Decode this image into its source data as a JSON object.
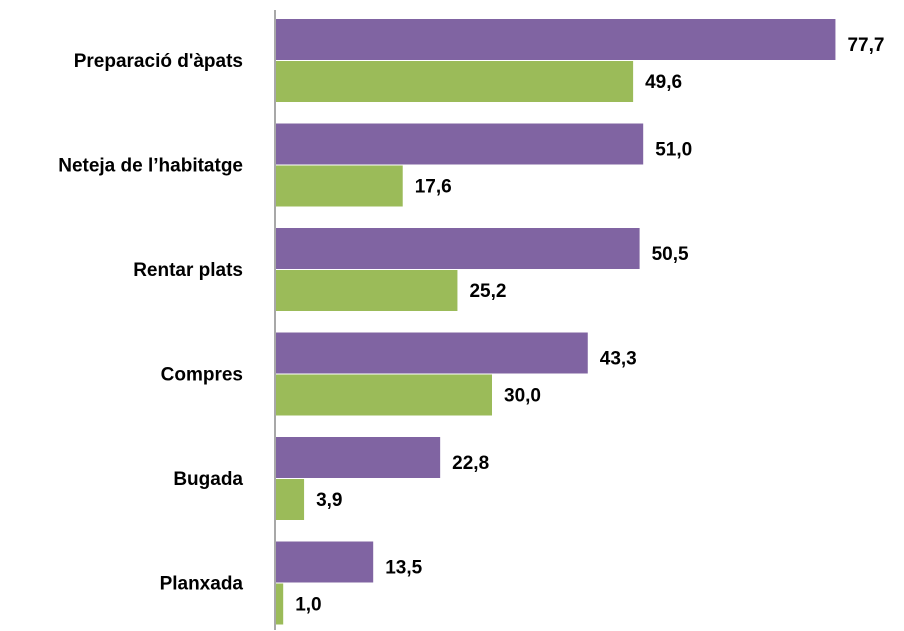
{
  "chart_data": {
    "type": "barh",
    "categories": [
      "Preparació d'àpats",
      "Neteja de l’habitatge",
      "Rentar plats",
      "Compres",
      "Bugada",
      "Planxada"
    ],
    "series": [
      {
        "color": "#8064a2",
        "values": [
          77.7,
          51.0,
          50.5,
          43.3,
          22.8,
          13.5
        ],
        "value_labels": [
          "77,7",
          "51,0",
          "50,5",
          "43,3",
          "22,8",
          "13,5"
        ]
      },
      {
        "color": "#9bbb59",
        "values": [
          49.6,
          17.6,
          25.2,
          30.0,
          3.9,
          1.0
        ],
        "value_labels": [
          "49,6",
          "17,6",
          "25,2",
          "30,0",
          "3,9",
          "1,0"
        ]
      }
    ],
    "xlim": [
      0,
      80
    ]
  }
}
